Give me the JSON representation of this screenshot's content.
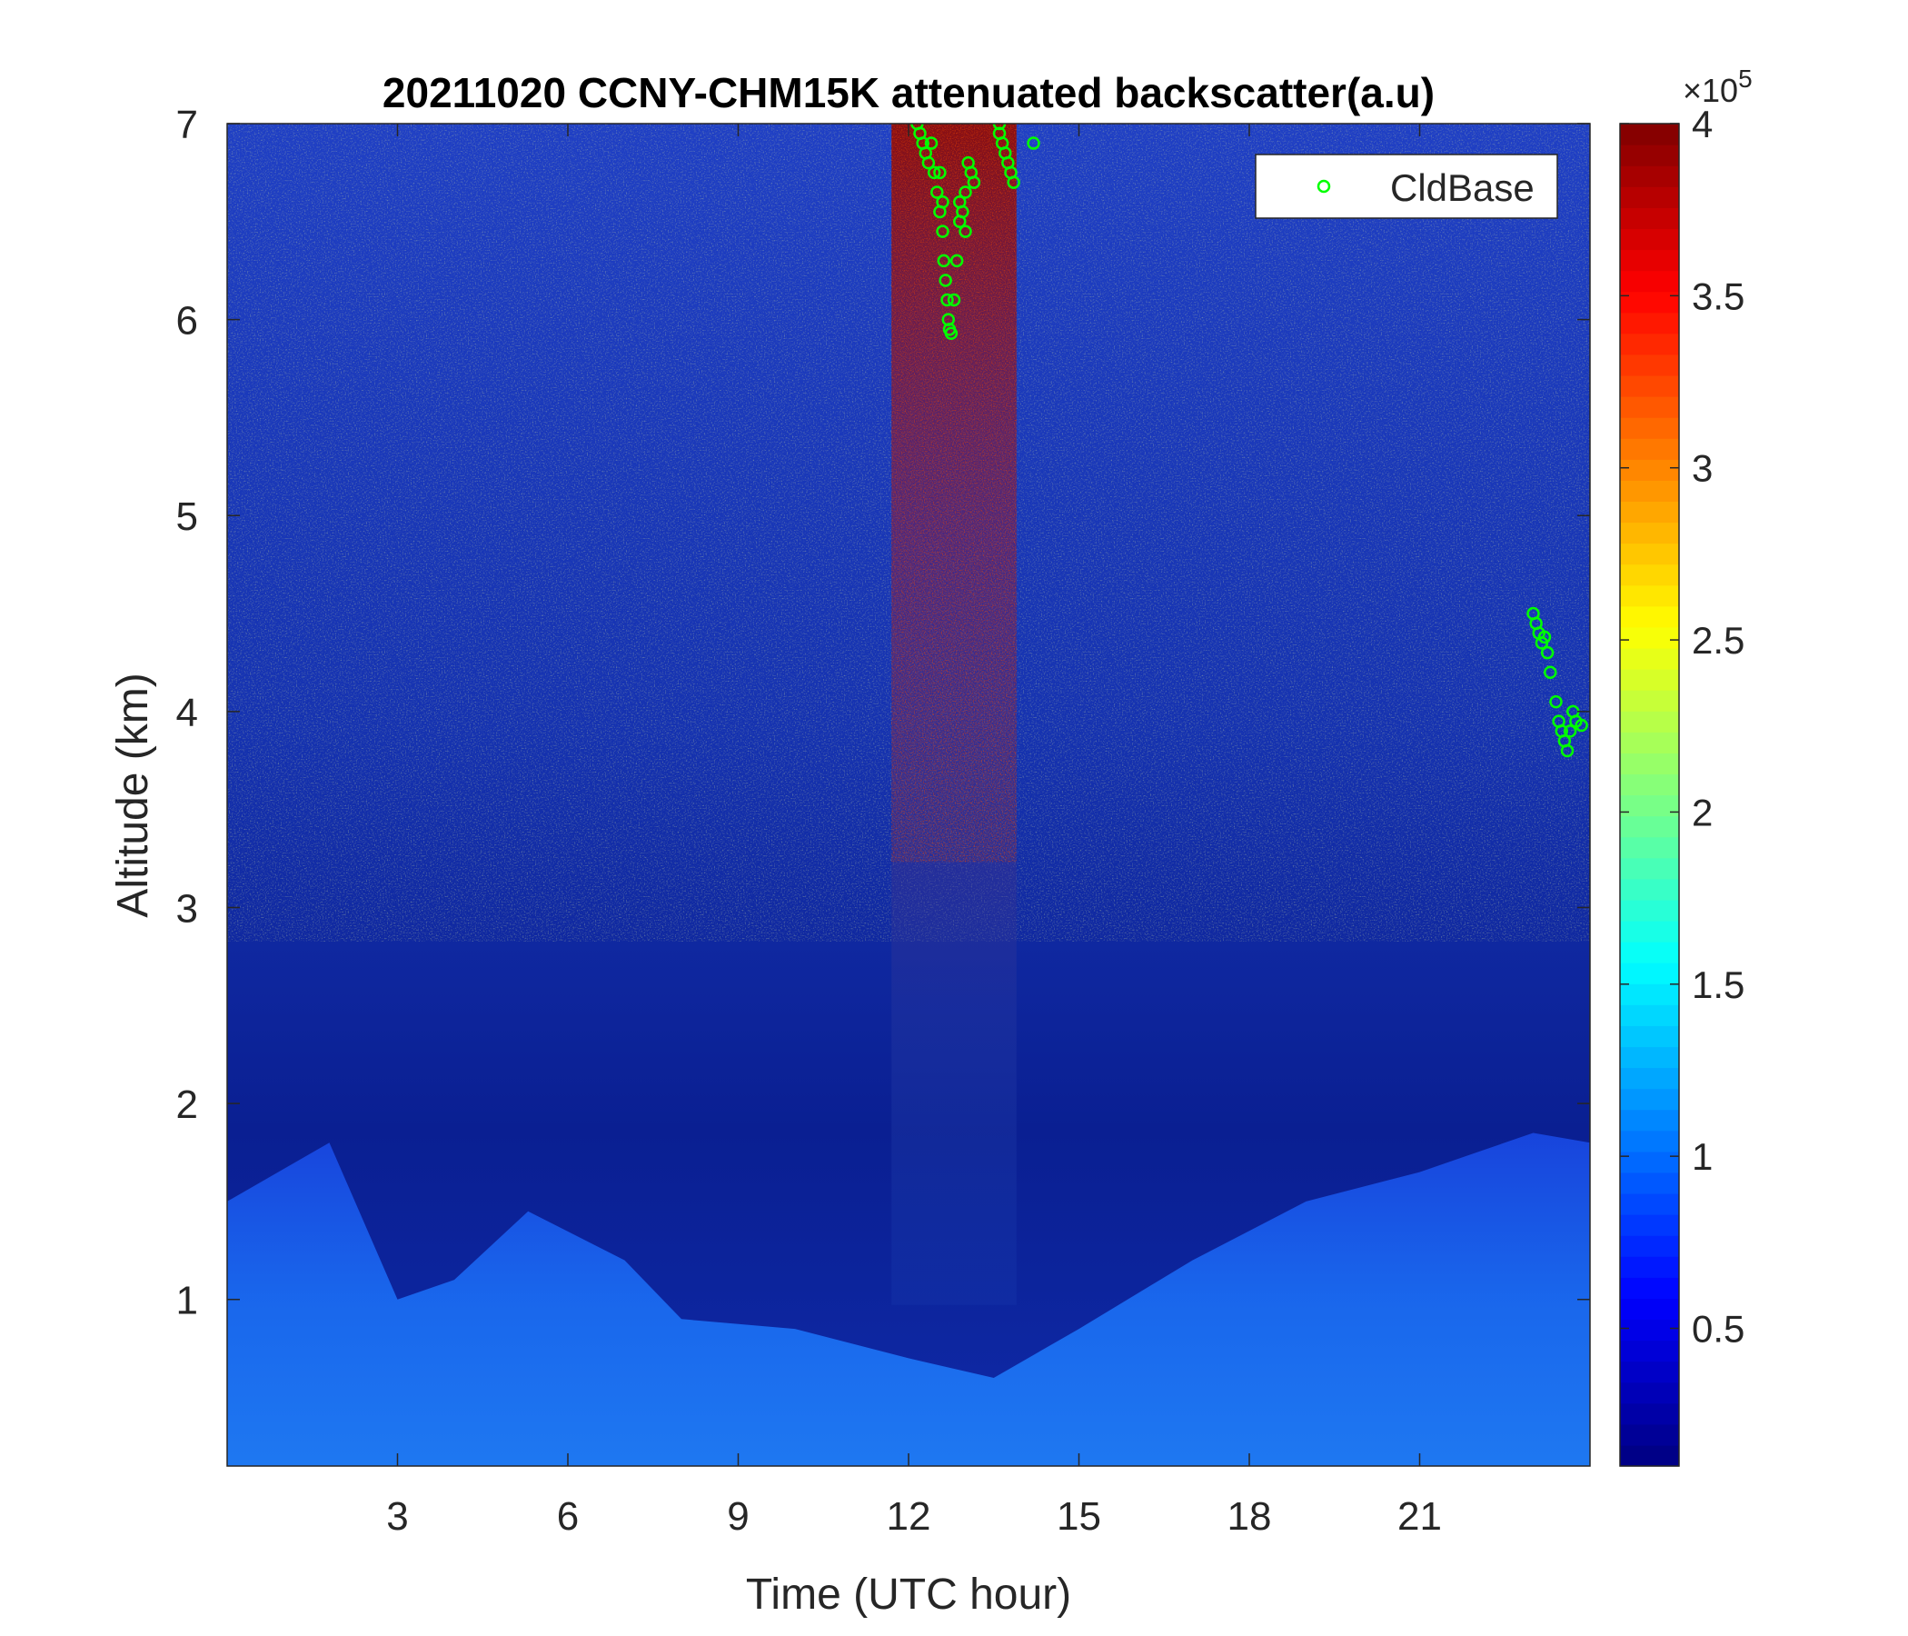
{
  "chart_data": {
    "type": "heatmap",
    "title": "20211020 CCNY-CHM15K attenuated backscatter(a.u)",
    "xlabel": "Time (UTC hour)",
    "ylabel": "Altitude (km)",
    "xlim": [
      0,
      24
    ],
    "ylim": [
      0.15,
      7
    ],
    "xticks": [
      3,
      6,
      9,
      12,
      15,
      18,
      21
    ],
    "yticks": [
      1,
      2,
      3,
      4,
      5,
      6,
      7
    ],
    "colorbar": {
      "colormap": "jet",
      "range": [
        0.1,
        4
      ],
      "ticks": [
        "0.5",
        "1",
        "1.5",
        "2",
        "2.5",
        "3",
        "3.5",
        "4"
      ],
      "tick_values": [
        0.5,
        1,
        1.5,
        2,
        2.5,
        3,
        3.5,
        4
      ],
      "exponent_base": "×10",
      "exponent_power": "5"
    },
    "background_notes": {
      "aerosol_layer_top_km": [
        [
          0,
          1.5
        ],
        [
          1.8,
          1.8
        ],
        [
          3,
          1.0
        ],
        [
          4,
          1.1
        ],
        [
          5.3,
          1.45
        ],
        [
          7,
          1.2
        ],
        [
          8,
          0.9
        ],
        [
          10,
          0.85
        ],
        [
          12,
          0.7
        ],
        [
          13.5,
          0.6
        ],
        [
          15,
          0.85
        ],
        [
          17,
          1.2
        ],
        [
          19,
          1.5
        ],
        [
          21,
          1.65
        ],
        [
          23,
          1.85
        ],
        [
          24,
          1.8
        ]
      ],
      "rain_or_high_signal_column_hours": [
        11.7,
        13.9
      ]
    },
    "series": [
      {
        "name": "CldBase",
        "marker": "open-circle",
        "color": "#00ff00",
        "points": [
          [
            12.15,
            7.0
          ],
          [
            12.2,
            6.95
          ],
          [
            12.25,
            6.9
          ],
          [
            12.3,
            6.85
          ],
          [
            12.35,
            6.8
          ],
          [
            12.4,
            6.9
          ],
          [
            12.45,
            6.75
          ],
          [
            12.5,
            6.65
          ],
          [
            12.55,
            6.55
          ],
          [
            12.6,
            6.45
          ],
          [
            12.62,
            6.3
          ],
          [
            12.65,
            6.2
          ],
          [
            12.68,
            6.1
          ],
          [
            12.7,
            6.0
          ],
          [
            12.72,
            5.95
          ],
          [
            12.75,
            5.93
          ],
          [
            12.8,
            6.1
          ],
          [
            12.85,
            6.3
          ],
          [
            12.9,
            6.5
          ],
          [
            12.95,
            6.55
          ],
          [
            13.0,
            6.65
          ],
          [
            13.05,
            6.8
          ],
          [
            13.1,
            6.75
          ],
          [
            13.15,
            6.7
          ],
          [
            13.0,
            6.45
          ],
          [
            12.9,
            6.6
          ],
          [
            13.6,
            6.95
          ],
          [
            13.65,
            6.9
          ],
          [
            13.7,
            6.85
          ],
          [
            13.75,
            6.8
          ],
          [
            13.8,
            6.75
          ],
          [
            13.85,
            6.7
          ],
          [
            14.2,
            6.9
          ],
          [
            13.6,
            7.0
          ],
          [
            12.55,
            6.75
          ],
          [
            12.6,
            6.6
          ],
          [
            23.0,
            4.5
          ],
          [
            23.05,
            4.45
          ],
          [
            23.1,
            4.4
          ],
          [
            23.15,
            4.35
          ],
          [
            23.2,
            4.38
          ],
          [
            23.25,
            4.3
          ],
          [
            23.3,
            4.2
          ],
          [
            23.4,
            4.05
          ],
          [
            23.45,
            3.95
          ],
          [
            23.5,
            3.9
          ],
          [
            23.55,
            3.85
          ],
          [
            23.6,
            3.8
          ],
          [
            23.65,
            3.9
          ],
          [
            23.7,
            4.0
          ],
          [
            23.75,
            3.95
          ],
          [
            23.85,
            3.93
          ]
        ]
      }
    ],
    "legend": {
      "location": "top-right",
      "entries": [
        "CldBase"
      ]
    }
  }
}
